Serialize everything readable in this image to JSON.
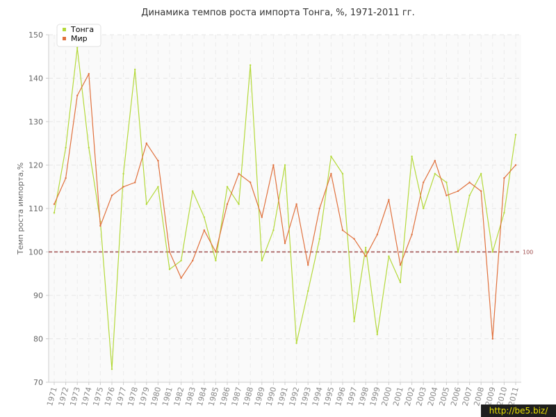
{
  "watermark": "http://be5.biz/",
  "chart_data": {
    "type": "line",
    "title": "Динамика темпов роста импорта Тонга, %, 1971-2011 гг.",
    "xlabel": "",
    "ylabel": "Темп роста импорта,%",
    "ylim": [
      70,
      150
    ],
    "yticks": [
      70,
      80,
      90,
      100,
      110,
      120,
      130,
      140,
      150
    ],
    "grid": true,
    "legend_position": "top-left",
    "reference_line": {
      "value": 100,
      "label": "100",
      "color": "#9e4a4a"
    },
    "categories": [
      "1971",
      "1972",
      "1973",
      "1974",
      "1975",
      "1976",
      "1977",
      "1978",
      "1979",
      "1980",
      "1981",
      "1982",
      "1983",
      "1984",
      "1985",
      "1986",
      "1987",
      "1988",
      "1989",
      "1990",
      "1991",
      "1992",
      "1993",
      "1994",
      "1995",
      "1996",
      "1997",
      "1998",
      "1999",
      "2000",
      "2001",
      "2002",
      "2003",
      "2004",
      "2005",
      "2006",
      "2007",
      "2008",
      "2009",
      "2010",
      "2011"
    ],
    "series": [
      {
        "name": "Тонга",
        "color": "#b4d93a",
        "values": [
          109,
          124,
          147,
          124,
          107,
          73,
          118,
          142,
          111,
          115,
          96,
          98,
          114,
          108,
          98,
          115,
          111,
          143,
          98,
          105,
          120,
          79,
          91,
          103,
          122,
          118,
          84,
          101,
          81,
          99,
          93,
          122,
          110,
          118,
          116,
          100,
          113,
          118,
          100,
          109,
          127
        ]
      },
      {
        "name": "Мир",
        "color": "#e0703c",
        "values": [
          111,
          117,
          136,
          141,
          106,
          113,
          115,
          116,
          125,
          121,
          100,
          94,
          98,
          105,
          100,
          111,
          118,
          116,
          108,
          120,
          102,
          111,
          97,
          110,
          118,
          105,
          103,
          99,
          104,
          112,
          97,
          104,
          116,
          121,
          113,
          114,
          116,
          114,
          80,
          117,
          120
        ]
      }
    ]
  }
}
